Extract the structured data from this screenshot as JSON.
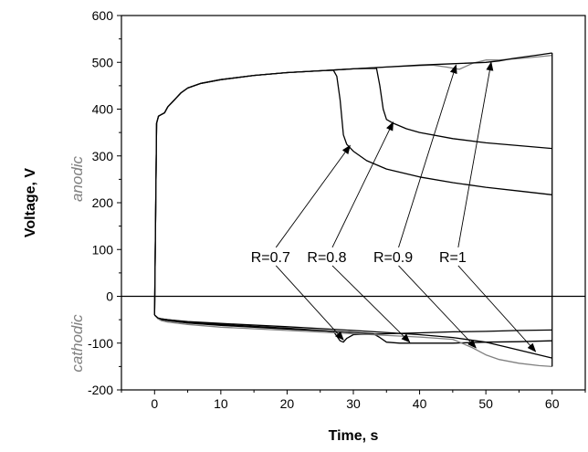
{
  "chart_data": {
    "type": "line",
    "title": "",
    "xlabel": "Time, s",
    "ylabel": "Voltage, V",
    "xlim": [
      -5,
      65
    ],
    "ylim": [
      -200,
      600
    ],
    "xticks": [
      0,
      10,
      20,
      30,
      40,
      50,
      60
    ],
    "yticks": [
      -200,
      -100,
      0,
      100,
      200,
      300,
      400,
      500,
      600
    ],
    "grid": false,
    "legend": "none",
    "region_labels": {
      "anodic": "anodic",
      "cathodic": "cathodic"
    },
    "colors": {
      "black": "#000000",
      "gray": "#808080"
    },
    "series": [
      {
        "name": "R=0.7",
        "color": "#000000",
        "anodic": {
          "x": [
            0,
            0.3,
            0.6,
            1,
            1.5,
            2,
            3,
            4,
            5,
            7,
            10,
            15,
            20,
            25,
            27,
            27.5,
            28,
            28.5,
            29,
            30,
            32,
            35,
            40,
            45,
            50,
            55,
            60
          ],
          "y": [
            -40,
            370,
            385,
            388,
            392,
            405,
            420,
            435,
            445,
            455,
            463,
            472,
            478,
            482,
            483,
            470,
            420,
            345,
            325,
            310,
            290,
            272,
            255,
            243,
            233,
            225,
            217
          ]
        },
        "cathodic": {
          "x": [
            0,
            0.5,
            1,
            2,
            5,
            10,
            20,
            27,
            28,
            28.5,
            29,
            30,
            35,
            40,
            45,
            50,
            55,
            60
          ],
          "y": [
            -40,
            -47,
            -48,
            -50,
            -55,
            -60,
            -68,
            -75,
            -95,
            -98,
            -90,
            -82,
            -80,
            -78,
            -76,
            -75,
            -73,
            -72
          ]
        }
      },
      {
        "name": "R=0.8",
        "color": "#000000",
        "anodic": {
          "x": [
            0,
            0.3,
            0.6,
            1,
            1.5,
            2,
            3,
            4,
            5,
            7,
            10,
            15,
            20,
            25,
            30,
            33.5,
            34,
            34.5,
            35,
            36,
            38,
            40,
            45,
            50,
            55,
            60
          ],
          "y": [
            -40,
            370,
            385,
            388,
            392,
            405,
            420,
            435,
            445,
            455,
            463,
            472,
            478,
            482,
            486,
            487,
            450,
            400,
            378,
            370,
            358,
            350,
            337,
            328,
            322,
            316
          ]
        },
        "cathodic": {
          "x": [
            0,
            0.5,
            1,
            2,
            5,
            10,
            20,
            30,
            33,
            34,
            35,
            37,
            40,
            45,
            50,
            55,
            60
          ],
          "y": [
            -40,
            -47,
            -50,
            -52,
            -57,
            -62,
            -70,
            -77,
            -80,
            -88,
            -98,
            -100,
            -100,
            -100,
            -98,
            -97,
            -95
          ]
        }
      },
      {
        "name": "R=0.9",
        "color": "#808080",
        "anodic": {
          "x": [
            0,
            0.3,
            0.6,
            1,
            1.5,
            2,
            3,
            4,
            5,
            7,
            10,
            15,
            20,
            25,
            30,
            35,
            40,
            42,
            44,
            46,
            48,
            50,
            52,
            55,
            58,
            60
          ],
          "y": [
            -40,
            370,
            385,
            388,
            392,
            405,
            420,
            435,
            445,
            455,
            463,
            472,
            478,
            482,
            486,
            490,
            493,
            494,
            490,
            485,
            498,
            505,
            505,
            508,
            512,
            515
          ]
        },
        "cathodic": {
          "x": [
            0,
            0.5,
            1,
            2,
            5,
            10,
            20,
            30,
            40,
            45,
            48,
            50,
            52,
            55,
            58,
            60
          ],
          "y": [
            -40,
            -48,
            -52,
            -55,
            -60,
            -66,
            -73,
            -80,
            -87,
            -92,
            -110,
            -125,
            -135,
            -143,
            -148,
            -150
          ]
        }
      },
      {
        "name": "R=1",
        "color": "#000000",
        "anodic": {
          "x": [
            0,
            0.3,
            0.6,
            1,
            1.5,
            2,
            3,
            4,
            5,
            7,
            10,
            15,
            20,
            25,
            30,
            35,
            40,
            45,
            50,
            52,
            54,
            56,
            58,
            60
          ],
          "y": [
            -40,
            370,
            385,
            388,
            392,
            405,
            420,
            435,
            445,
            455,
            463,
            472,
            478,
            482,
            486,
            490,
            494,
            497,
            500,
            503,
            508,
            512,
            516,
            520
          ]
        },
        "cathodic": {
          "x": [
            0,
            0.5,
            1,
            2,
            5,
            10,
            20,
            30,
            40,
            45,
            50,
            53,
            55,
            58,
            60
          ],
          "y": [
            -40,
            -46,
            -48,
            -50,
            -54,
            -58,
            -65,
            -73,
            -82,
            -88,
            -98,
            -108,
            -115,
            -125,
            -132
          ]
        }
      }
    ],
    "annotations": [
      {
        "text": "R=0.7",
        "label_at": [
          17.5,
          85
        ],
        "arrows_to": [
          [
            29.5,
            322
          ],
          [
            28.5,
            -93
          ]
        ]
      },
      {
        "text": "R=0.8",
        "label_at": [
          26,
          85
        ],
        "arrows_to": [
          [
            36,
            372
          ],
          [
            38.5,
            -98
          ]
        ]
      },
      {
        "text": "R=0.9",
        "label_at": [
          36,
          85
        ],
        "arrows_to": [
          [
            45.5,
            494
          ],
          [
            48.5,
            -110
          ]
        ]
      },
      {
        "text": "R=1",
        "label_at": [
          45,
          85
        ],
        "arrows_to": [
          [
            50.8,
            500
          ],
          [
            57.5,
            -118
          ]
        ]
      }
    ]
  }
}
